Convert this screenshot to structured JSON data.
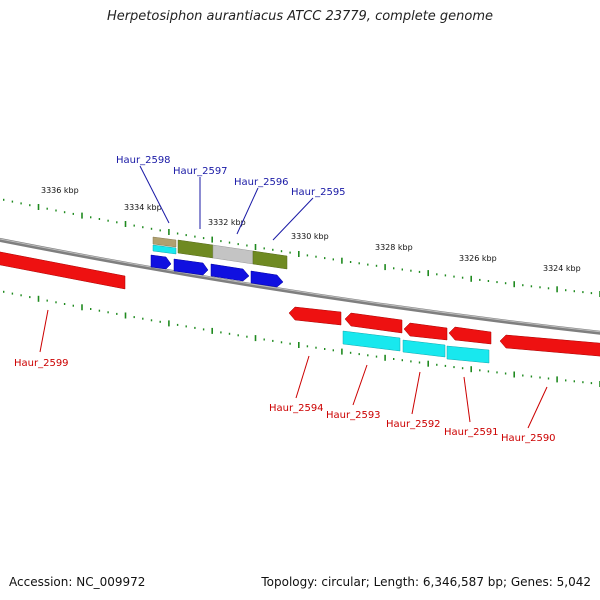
{
  "title": "Herpetosiphon aurantiacus ATCC 23779, complete genome",
  "footer": {
    "accession": "Accession: NC_009972",
    "summary": "Topology: circular; Length: 6,346,587 bp; Genes: 5,042"
  },
  "colors": {
    "backbone": "#7f7f7f",
    "tick": "#1f8a1f",
    "forward_label": "#1a1aa6",
    "reverse_label": "#cc0000",
    "cds_blue": "#1010e0",
    "cds_red": "#ee1111",
    "cyan": "#18e8ee",
    "olive": "#6f8a22",
    "gray": "#c4c4c4",
    "tan": "#b0a070"
  },
  "scale_labels": [
    "3336 kbp",
    "3334 kbp",
    "3332 kbp",
    "3330 kbp",
    "3328 kbp",
    "3326 kbp",
    "3324 kbp"
  ],
  "forward_genes": [
    "Haur_2598",
    "Haur_2597",
    "Haur_2596",
    "Haur_2595"
  ],
  "reverse_genes": [
    "Haur_2599",
    "Haur_2594",
    "Haur_2593",
    "Haur_2592",
    "Haur_2591",
    "Haur_2590"
  ]
}
